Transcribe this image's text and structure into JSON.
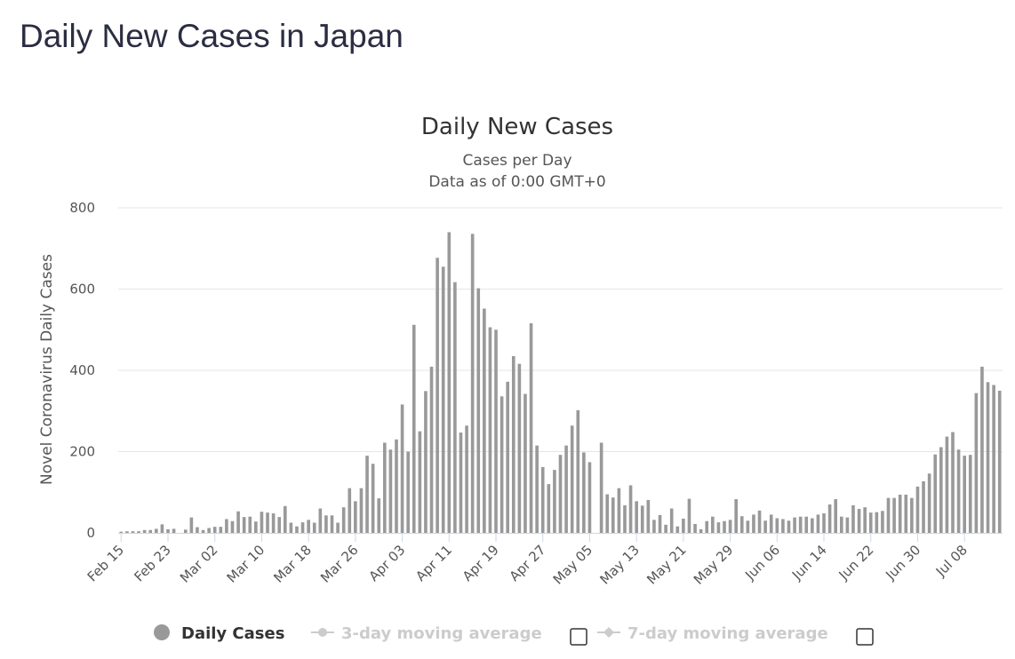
{
  "page": {
    "heading": "Daily New Cases in Japan"
  },
  "chart_data": {
    "type": "bar",
    "title": "Daily New Cases",
    "subtitle_lines": [
      "Cases per Day",
      "Data as of 0:00 GMT+0"
    ],
    "ylabel": "Novel Coronavirus Daily Cases",
    "xlabel": "",
    "ylim": [
      0,
      800
    ],
    "yticks": [
      0,
      200,
      400,
      600,
      800
    ],
    "grid": true,
    "bar_color": "#999999",
    "grid_color": "#e6e6e6",
    "x_tick_labels": [
      "Feb 15",
      "Feb 23",
      "Mar 02",
      "Mar 10",
      "Mar 18",
      "Mar 26",
      "Apr 03",
      "Apr 11",
      "Apr 19",
      "Apr 27",
      "May 05",
      "May 13",
      "May 21",
      "May 29",
      "Jun 06",
      "Jun 14",
      "Jun 22",
      "Jun 30",
      "Jul 08"
    ],
    "first_date": "Feb 15",
    "last_date": "Jul 14",
    "series": [
      {
        "name": "Daily Cases",
        "values": [
          3,
          4,
          4,
          4,
          7,
          7,
          10,
          21,
          9,
          10,
          0,
          8,
          38,
          14,
          7,
          12,
          15,
          15,
          34,
          29,
          53,
          39,
          40,
          28,
          52,
          50,
          48,
          39,
          66,
          25,
          16,
          26,
          32,
          25,
          60,
          43,
          43,
          25,
          63,
          110,
          78,
          110,
          190,
          170,
          85,
          222,
          205,
          230,
          316,
          200,
          512,
          250,
          349,
          409,
          677,
          655,
          740,
          617,
          247,
          264,
          736,
          602,
          552,
          506,
          500,
          336,
          372,
          435,
          416,
          342,
          516,
          215,
          162,
          120,
          155,
          192,
          215,
          264,
          302,
          198,
          174,
          0,
          222,
          95,
          87,
          110,
          68,
          117,
          78,
          67,
          81,
          32,
          44,
          20,
          60,
          16,
          35,
          84,
          22,
          9,
          29,
          40,
          26,
          29,
          32,
          83,
          41,
          30,
          45,
          55,
          30,
          45,
          36,
          34,
          30,
          38,
          40,
          40,
          36,
          45,
          48,
          70,
          83,
          40,
          38,
          68,
          59,
          63,
          50,
          51,
          54,
          86,
          86,
          94,
          94,
          86,
          114,
          127,
          146,
          193,
          211,
          237,
          248,
          205,
          190,
          192,
          344,
          409,
          371,
          364,
          350
        ]
      }
    ],
    "legend": [
      {
        "label": "Daily Cases",
        "type": "dot",
        "color": "#999999",
        "text_color": "#333333"
      },
      {
        "label": "3-day moving average",
        "type": "line",
        "color": "#cccccc",
        "text_color": "#cccccc",
        "checkbox": true
      },
      {
        "label": "7-day moving average",
        "type": "diamond-line",
        "color": "#cccccc",
        "text_color": "#cccccc",
        "checkbox": true
      }
    ]
  }
}
